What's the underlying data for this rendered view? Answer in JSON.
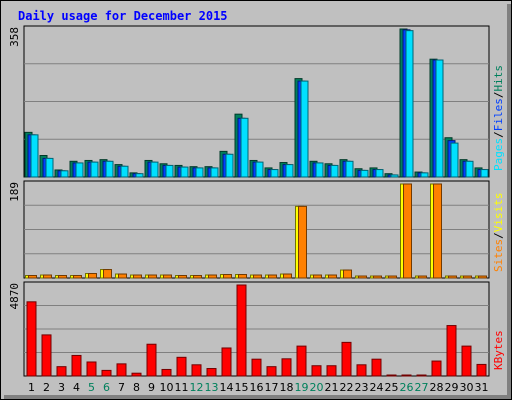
{
  "title": "Daily usage for December 2015",
  "colors": {
    "background": "#C0C0C0",
    "title": "#0000FF",
    "hits": "#00805C",
    "files": "#0040FF",
    "pages": "#00E0FF",
    "visits": "#FFFF00",
    "sites": "#FF8000",
    "kbytes": "#FF0000",
    "weekend_day_label": "#00805C",
    "day_label": "#000000"
  },
  "chart_data": [
    {
      "type": "bar",
      "name": "top-panel",
      "max_label": "358",
      "ylim": [
        0,
        358
      ],
      "grid": true,
      "legend": [
        "Pages",
        "/",
        "Files",
        "/",
        "Hits"
      ],
      "series": [
        {
          "name": "Hits",
          "values": [
            108,
            52,
            17,
            38,
            40,
            42,
            30,
            10,
            40,
            32,
            28,
            25,
            25,
            62,
            152,
            40,
            22,
            35,
            238,
            38,
            32,
            42,
            20,
            22,
            8,
            358,
            12,
            285,
            95,
            42,
            22
          ]
        },
        {
          "name": "Files",
          "values": [
            102,
            45,
            15,
            34,
            36,
            38,
            26,
            8,
            36,
            28,
            24,
            22,
            22,
            55,
            142,
            36,
            18,
            30,
            232,
            34,
            28,
            38,
            16,
            18,
            5,
            356,
            10,
            283,
            88,
            38,
            18
          ]
        },
        {
          "name": "Pages",
          "values": [
            102,
            45,
            15,
            34,
            36,
            38,
            26,
            8,
            36,
            28,
            24,
            22,
            22,
            55,
            142,
            36,
            18,
            30,
            232,
            34,
            28,
            38,
            16,
            18,
            5,
            354,
            10,
            283,
            82,
            38,
            18
          ]
        }
      ]
    },
    {
      "type": "bar",
      "name": "middle-panel",
      "max_label": "189",
      "ylim": [
        0,
        189
      ],
      "grid": true,
      "legend": [
        "Sites",
        "/",
        "Visits"
      ],
      "series": [
        {
          "name": "Visits",
          "values": [
            5,
            6,
            5,
            5,
            9,
            17,
            8,
            6,
            6,
            6,
            5,
            5,
            6,
            7,
            7,
            6,
            6,
            8,
            144,
            6,
            6,
            16,
            4,
            4,
            4,
            189,
            4,
            189,
            4,
            4,
            4
          ]
        },
        {
          "name": "Sites",
          "values": [
            5,
            6,
            5,
            5,
            9,
            17,
            8,
            6,
            6,
            6,
            5,
            5,
            6,
            7,
            7,
            6,
            6,
            8,
            144,
            6,
            6,
            16,
            4,
            4,
            4,
            189,
            4,
            189,
            4,
            4,
            4
          ]
        }
      ]
    },
    {
      "type": "bar",
      "name": "bottom-panel",
      "max_label": "4870",
      "ylim": [
        0,
        4870
      ],
      "grid": true,
      "legend": [
        "KBytes"
      ],
      "series": [
        {
          "name": "KBytes",
          "values": [
            3970,
            2200,
            500,
            1100,
            750,
            300,
            650,
            150,
            1700,
            350,
            1000,
            600,
            400,
            1500,
            4870,
            900,
            500,
            920,
            1600,
            550,
            550,
            1800,
            600,
            900,
            50,
            50,
            50,
            800,
            2700,
            1600,
            620
          ]
        }
      ]
    }
  ],
  "days": [
    "1",
    "2",
    "3",
    "4",
    "5",
    "6",
    "7",
    "8",
    "9",
    "10",
    "11",
    "12",
    "13",
    "14",
    "15",
    "16",
    "17",
    "18",
    "19",
    "20",
    "21",
    "22",
    "23",
    "24",
    "25",
    "26",
    "27",
    "28",
    "29",
    "30",
    "31"
  ],
  "weekend_days": [
    "5",
    "6",
    "12",
    "13",
    "19",
    "20",
    "26",
    "27"
  ]
}
